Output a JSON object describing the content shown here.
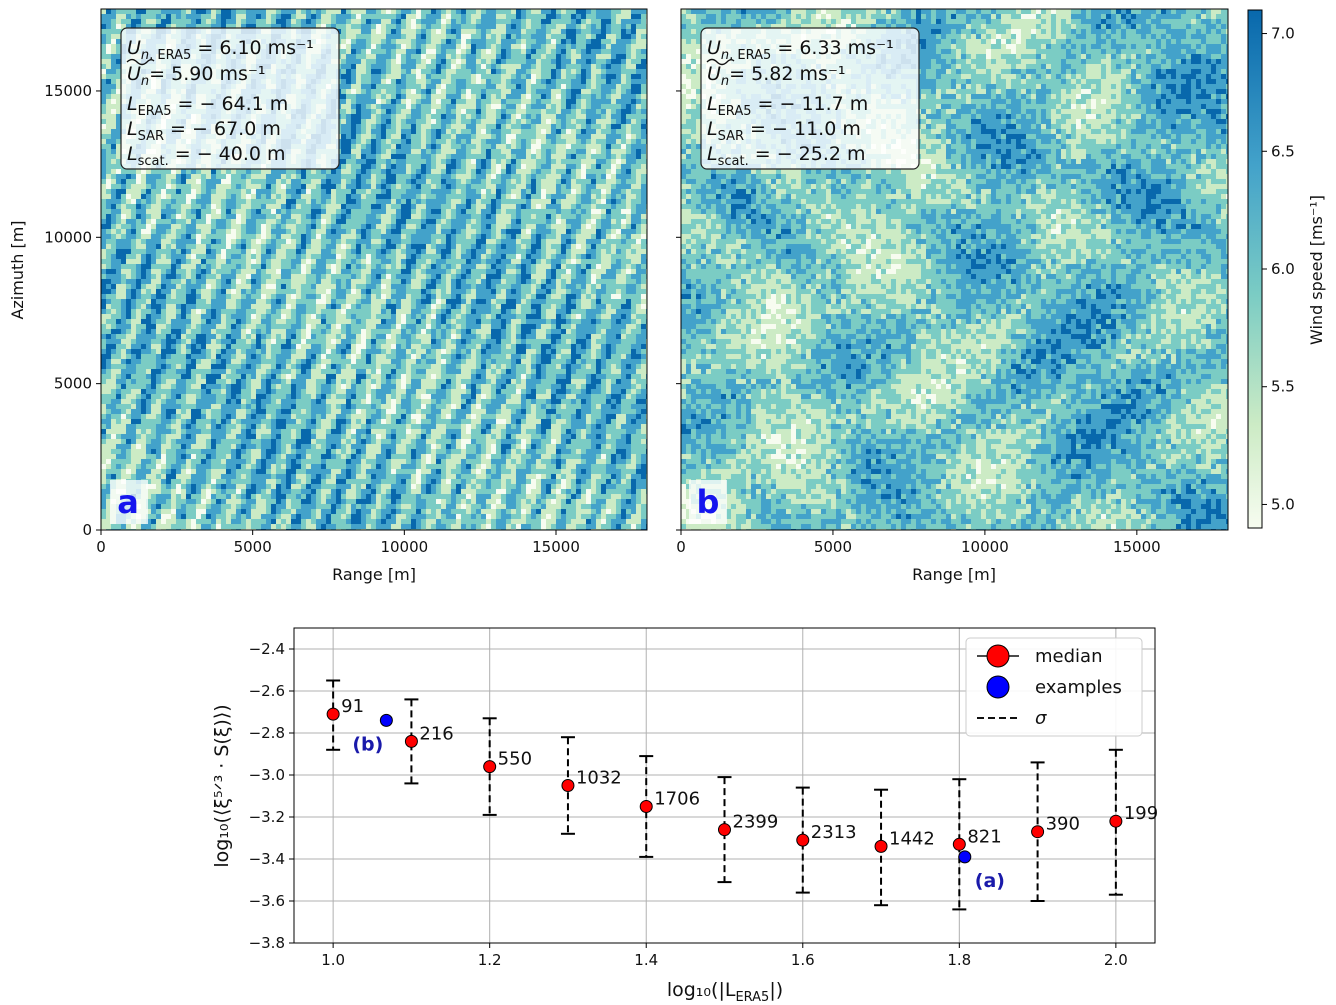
{
  "chart_data": [
    {
      "panel_label": "a",
      "type": "heatmap",
      "xlabel": "Range [m]",
      "ylabel": "Azimuth [m]",
      "xlim": [
        0,
        18000
      ],
      "ylim": [
        0,
        17800
      ],
      "xticks": [
        "0",
        "5000",
        "10000",
        "15000"
      ],
      "yticks": [
        "0",
        "5000",
        "10000",
        "15000"
      ],
      "pattern": "fine streaks",
      "stats": {
        "un_era5": "6.10 ms⁻¹",
        "un_tilde": "5.90 ms⁻¹",
        "l_era5": "− 64.1 m",
        "l_sar": "− 67.0 m",
        "l_scat": "− 40.0 m"
      }
    },
    {
      "panel_label": "b",
      "type": "heatmap",
      "xlabel": "Range [m]",
      "ylabel": "",
      "xlim": [
        0,
        18000
      ],
      "ylim": [
        0,
        17800
      ],
      "xticks": [
        "0",
        "5000",
        "10000",
        "15000"
      ],
      "pattern": "convective cells",
      "stats": {
        "un_era5": "6.33 ms⁻¹",
        "un_tilde": "5.82 ms⁻¹",
        "l_era5": "− 11.7 m",
        "l_sar": "− 11.0 m",
        "l_scat": "− 25.2 m"
      },
      "colorbar": {
        "label": "Wind speed [ms⁻¹]",
        "range": [
          4.9,
          7.1
        ],
        "ticks": [
          "5.0",
          "5.5",
          "6.0",
          "6.5",
          "7.0"
        ],
        "colormap": [
          "#f7fcf0",
          "#ccebc5",
          "#7bccc4",
          "#43a2ca",
          "#0868ac"
        ]
      }
    },
    {
      "type": "scatter",
      "xlabel": "log₁₀(|L",
      "xlabel_sub": "ERA5",
      "xlabel_end": "|)",
      "ylabel": "log₁₀(⟨ξ⁵ᐟ³ · S(ξ)⟩)",
      "xlim": [
        0.95,
        2.05
      ],
      "ylim": [
        -3.8,
        -2.3
      ],
      "xticks": [
        "1.0",
        "1.2",
        "1.4",
        "1.6",
        "1.8",
        "2.0"
      ],
      "yticks": [
        "−2.4",
        "−2.6",
        "−2.8",
        "−3.0",
        "−3.2",
        "−3.4",
        "−3.6",
        "−3.8"
      ],
      "grid": true,
      "legend_placement": "top-right",
      "legend": [
        "median",
        "examples",
        "σ"
      ],
      "series": [
        {
          "name": "median",
          "color": "#ff0000",
          "x": [
            1.0,
            1.1,
            1.2,
            1.3,
            1.4,
            1.5,
            1.6,
            1.7,
            1.8,
            1.9,
            2.0
          ],
          "y": [
            -2.71,
            -2.84,
            -2.96,
            -3.05,
            -3.15,
            -3.26,
            -3.31,
            -3.34,
            -3.33,
            -3.27,
            -3.22
          ],
          "err_low": [
            -2.88,
            -3.04,
            -3.19,
            -3.28,
            -3.39,
            -3.51,
            -3.56,
            -3.62,
            -3.64,
            -3.6,
            -3.57
          ],
          "err_high": [
            -2.55,
            -2.64,
            -2.73,
            -2.82,
            -2.91,
            -3.01,
            -3.06,
            -3.07,
            -3.02,
            -2.94,
            -2.88
          ],
          "labels": [
            "91",
            "216",
            "550",
            "1032",
            "1706",
            "2399",
            "2313",
            "1442",
            "821",
            "390",
            "199"
          ]
        },
        {
          "name": "examples",
          "color": "#0000ff",
          "x": [
            1.068,
            1.807
          ],
          "y": [
            -2.74,
            -3.39
          ],
          "labels": [
            "(b)",
            "(a)"
          ]
        }
      ]
    }
  ]
}
